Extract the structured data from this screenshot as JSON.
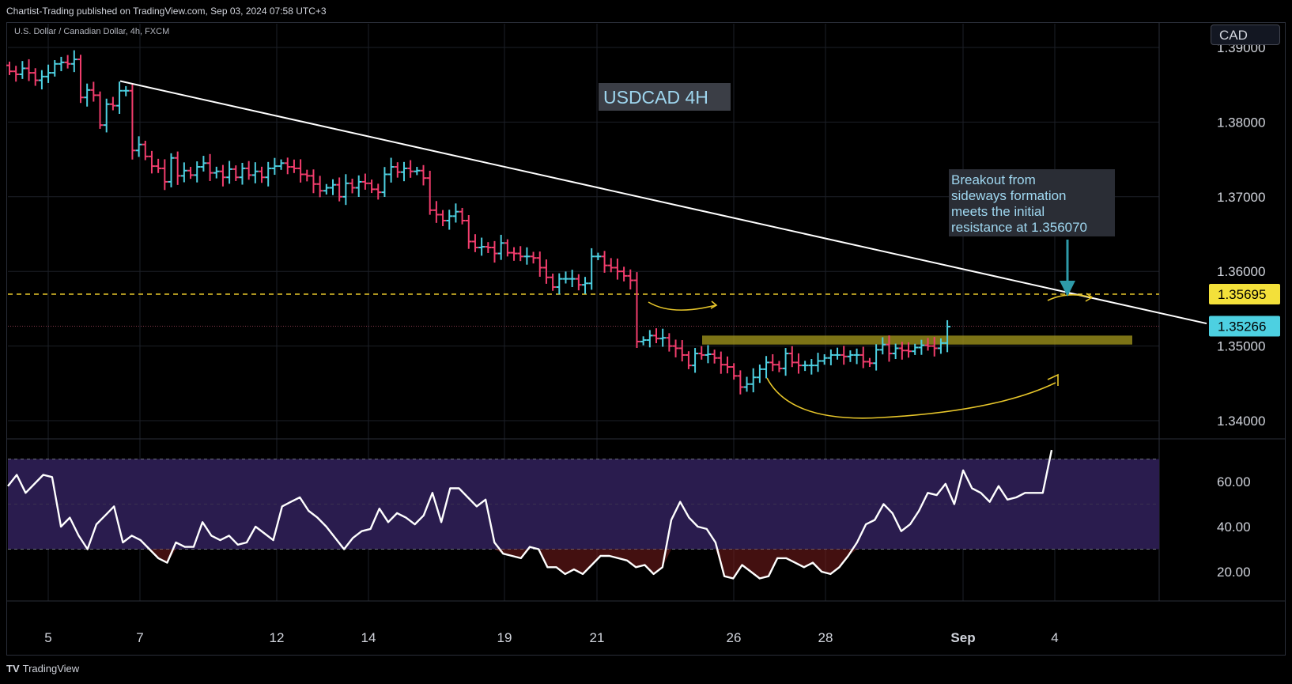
{
  "header": {
    "publisher": "Chartist-Trading published on TradingView.com, Sep 03, 2024 07:58 UTC+3"
  },
  "symbol_line": "U.S. Dollar / Canadian Dollar, 4h, FXCM",
  "currency_button": "CAD",
  "footer": {
    "brand": "TradingView",
    "logo": "tradingview-logo-icon"
  },
  "colors": {
    "up": "#4dd0e1",
    "down": "#f23d6d",
    "trendline": "#ffffff",
    "support": "#e6c52a",
    "resistance_box": "#a59a1e",
    "rsi_band": "#2a1c4e",
    "rsi_line": "#ffffff"
  },
  "chart_data": [
    {
      "type": "candlestick",
      "title": "USDCAD 4H",
      "y_ticks": [
        "1.39000",
        "1.38000",
        "1.37000",
        "1.36000",
        "1.35000",
        "1.34000"
      ],
      "x_ticks": [
        "5",
        "7",
        "12",
        "14",
        "19",
        "21",
        "26",
        "28",
        "Sep",
        "4"
      ],
      "ylim": [
        1.3355,
        1.3965
      ],
      "price_labels": {
        "support_level": "1.35695",
        "last_price": "1.35266"
      },
      "levels": {
        "support_dashed": 1.35695,
        "last_price": 1.35266,
        "resistance_box": [
          1.3502,
          1.3514
        ]
      },
      "trendline": {
        "from": [
          1.3855
        ],
        "to": [
          1.3527
        ]
      },
      "annotations": [
        {
          "text": "USDCAD 4H",
          "kind": "label"
        },
        {
          "text": "Breakout from sideways formation meets the initial resistance at 1.356070",
          "kind": "callout",
          "lines": [
            "Breakout from",
            "sideways formation",
            "meets the initial",
            "resistance at 1.356070"
          ]
        }
      ],
      "closes": [
        1.3868,
        1.3864,
        1.3872,
        1.3866,
        1.3856,
        1.3861,
        1.3866,
        1.3878,
        1.388,
        1.3878,
        1.3884,
        1.3833,
        1.3843,
        1.3836,
        1.3796,
        1.3824,
        1.3822,
        1.3842,
        1.3842,
        1.3762,
        1.377,
        1.3754,
        1.3741,
        1.3738,
        1.372,
        1.3752,
        1.3728,
        1.3735,
        1.3729,
        1.374,
        1.3745,
        1.3732,
        1.3734,
        1.3726,
        1.3737,
        1.3726,
        1.3738,
        1.3729,
        1.3734,
        1.3726,
        1.3738,
        1.3741,
        1.3745,
        1.374,
        1.3738,
        1.373,
        1.3728,
        1.3717,
        1.3708,
        1.3712,
        1.3716,
        1.37,
        1.3718,
        1.3712,
        1.372,
        1.3718,
        1.371,
        1.3706,
        1.373,
        1.374,
        1.3733,
        1.3738,
        1.3734,
        1.3735,
        1.3725,
        1.3682,
        1.3676,
        1.3668,
        1.3674,
        1.368,
        1.3668,
        1.364,
        1.3632,
        1.3633,
        1.3632,
        1.3624,
        1.3638,
        1.3625,
        1.3624,
        1.362,
        1.362,
        1.3618,
        1.3605,
        1.3592,
        1.3579,
        1.359,
        1.359,
        1.359,
        1.3582,
        1.3584,
        1.362,
        1.362,
        1.3608,
        1.3605,
        1.36,
        1.3594,
        1.3588,
        1.3506,
        1.3508,
        1.3514,
        1.351,
        1.3511,
        1.35,
        1.3497,
        1.3488,
        1.3474,
        1.349,
        1.3488,
        1.3489,
        1.3484,
        1.3475,
        1.3472,
        1.346,
        1.3445,
        1.3449,
        1.3458,
        1.3469,
        1.3478,
        1.3475,
        1.347,
        1.349,
        1.3478,
        1.3474,
        1.3474,
        1.3474,
        1.348,
        1.3484,
        1.3488,
        1.3488,
        1.3486,
        1.3488,
        1.3488,
        1.3479,
        1.3477,
        1.3495,
        1.3502,
        1.349,
        1.3497,
        1.3494,
        1.3493,
        1.3498,
        1.3501,
        1.35,
        1.3497,
        1.3504,
        1.3526
      ]
    },
    {
      "type": "line",
      "name": "RSI",
      "y_ticks": [
        "60.00",
        "40.00",
        "20.00"
      ],
      "ylim": [
        8,
        78
      ],
      "bands": [
        30,
        70
      ],
      "values": [
        58,
        63,
        55,
        59,
        63,
        62,
        40,
        44,
        36,
        30,
        41,
        45,
        49,
        33,
        36,
        34,
        30,
        26,
        24,
        33,
        31,
        31,
        42,
        36,
        34,
        36,
        32,
        33,
        40,
        37,
        34,
        49,
        51,
        53,
        47,
        44,
        40,
        35,
        30,
        35,
        38,
        39,
        48,
        42,
        46,
        44,
        41,
        45,
        55,
        42,
        57,
        57,
        53,
        49,
        52,
        33,
        28,
        27,
        26,
        31,
        30,
        22,
        22,
        19,
        21,
        19,
        23,
        27,
        27,
        26,
        25,
        22,
        23,
        19,
        22,
        43,
        51,
        44,
        40,
        39,
        33,
        18,
        17,
        23,
        20,
        17,
        18,
        26,
        26,
        24,
        22,
        24,
        20,
        19,
        22,
        27,
        33,
        41,
        43,
        50,
        46,
        38,
        41,
        47,
        55,
        54,
        59,
        50,
        65,
        57,
        55,
        51,
        58,
        52,
        53,
        55,
        55,
        55,
        74
      ]
    }
  ]
}
